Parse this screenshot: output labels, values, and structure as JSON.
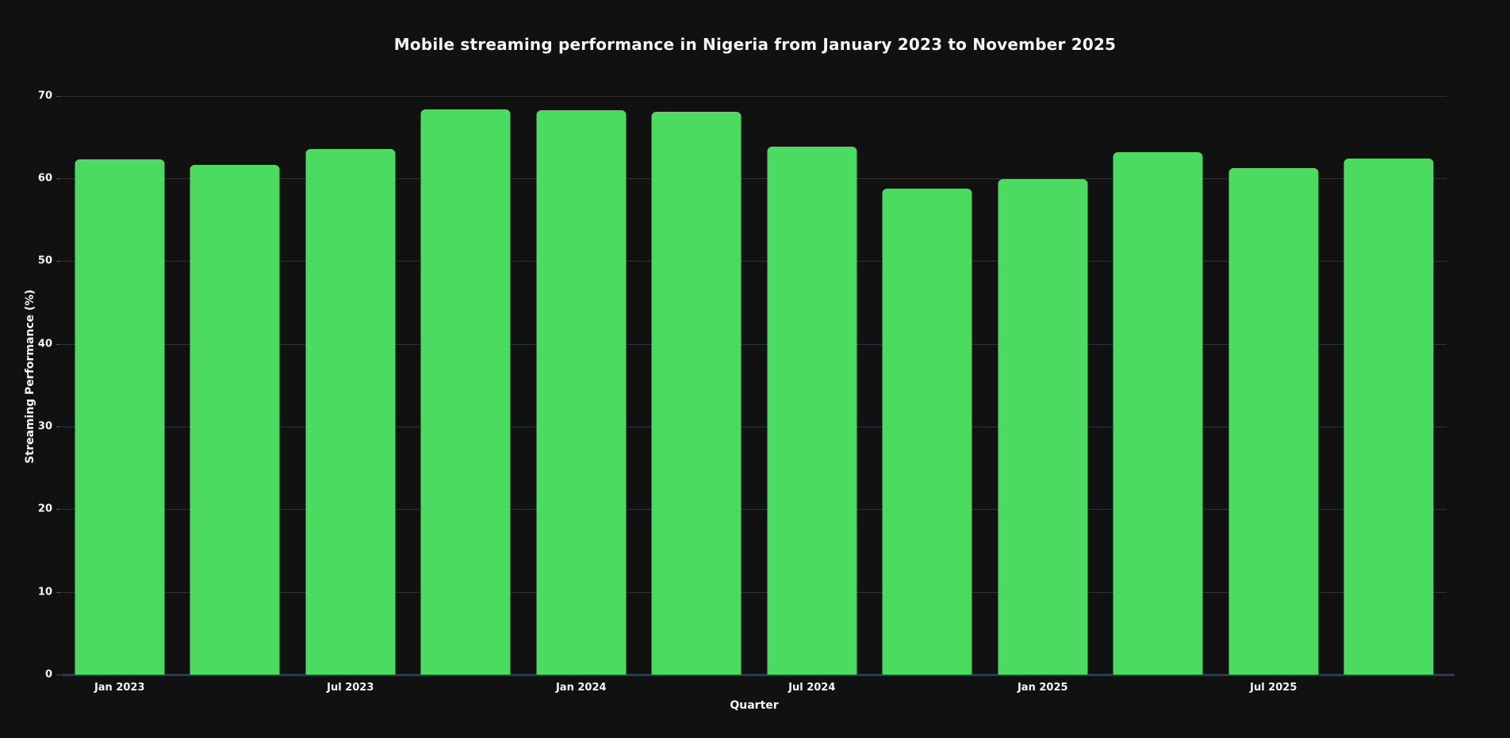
{
  "title": "Mobile streaming performance in Nigeria from January 2023 to November 2025",
  "colors": {
    "background": "#111111",
    "bar": "#4bdb60",
    "grid": "#283442",
    "axis_line": "#2e3b49",
    "text": "#f2f5fa"
  },
  "chart_data": {
    "type": "bar",
    "title": "Mobile streaming performance in Nigeria from January 2023 to November 2025",
    "xlabel": "Quarter",
    "ylabel": "Streaming Performance (%)",
    "ylim": [
      0,
      72
    ],
    "yticks": [
      0,
      10,
      20,
      30,
      40,
      50,
      60,
      70
    ],
    "grid": true,
    "legend": false,
    "bar_count": 12,
    "values": [
      62.3,
      61.6,
      63.6,
      68.4,
      68.3,
      68.1,
      63.9,
      58.8,
      59.9,
      63.2,
      61.3,
      62.4
    ],
    "x_tick_labels": [
      "Jan 2023",
      "Jul 2023",
      "Jan 2024",
      "Jul 2024",
      "Jan 2025",
      "Jul 2025"
    ],
    "x_tick_bar_indices": [
      0,
      2,
      4,
      6,
      8,
      10
    ],
    "bar_color": "#4bdb60"
  }
}
